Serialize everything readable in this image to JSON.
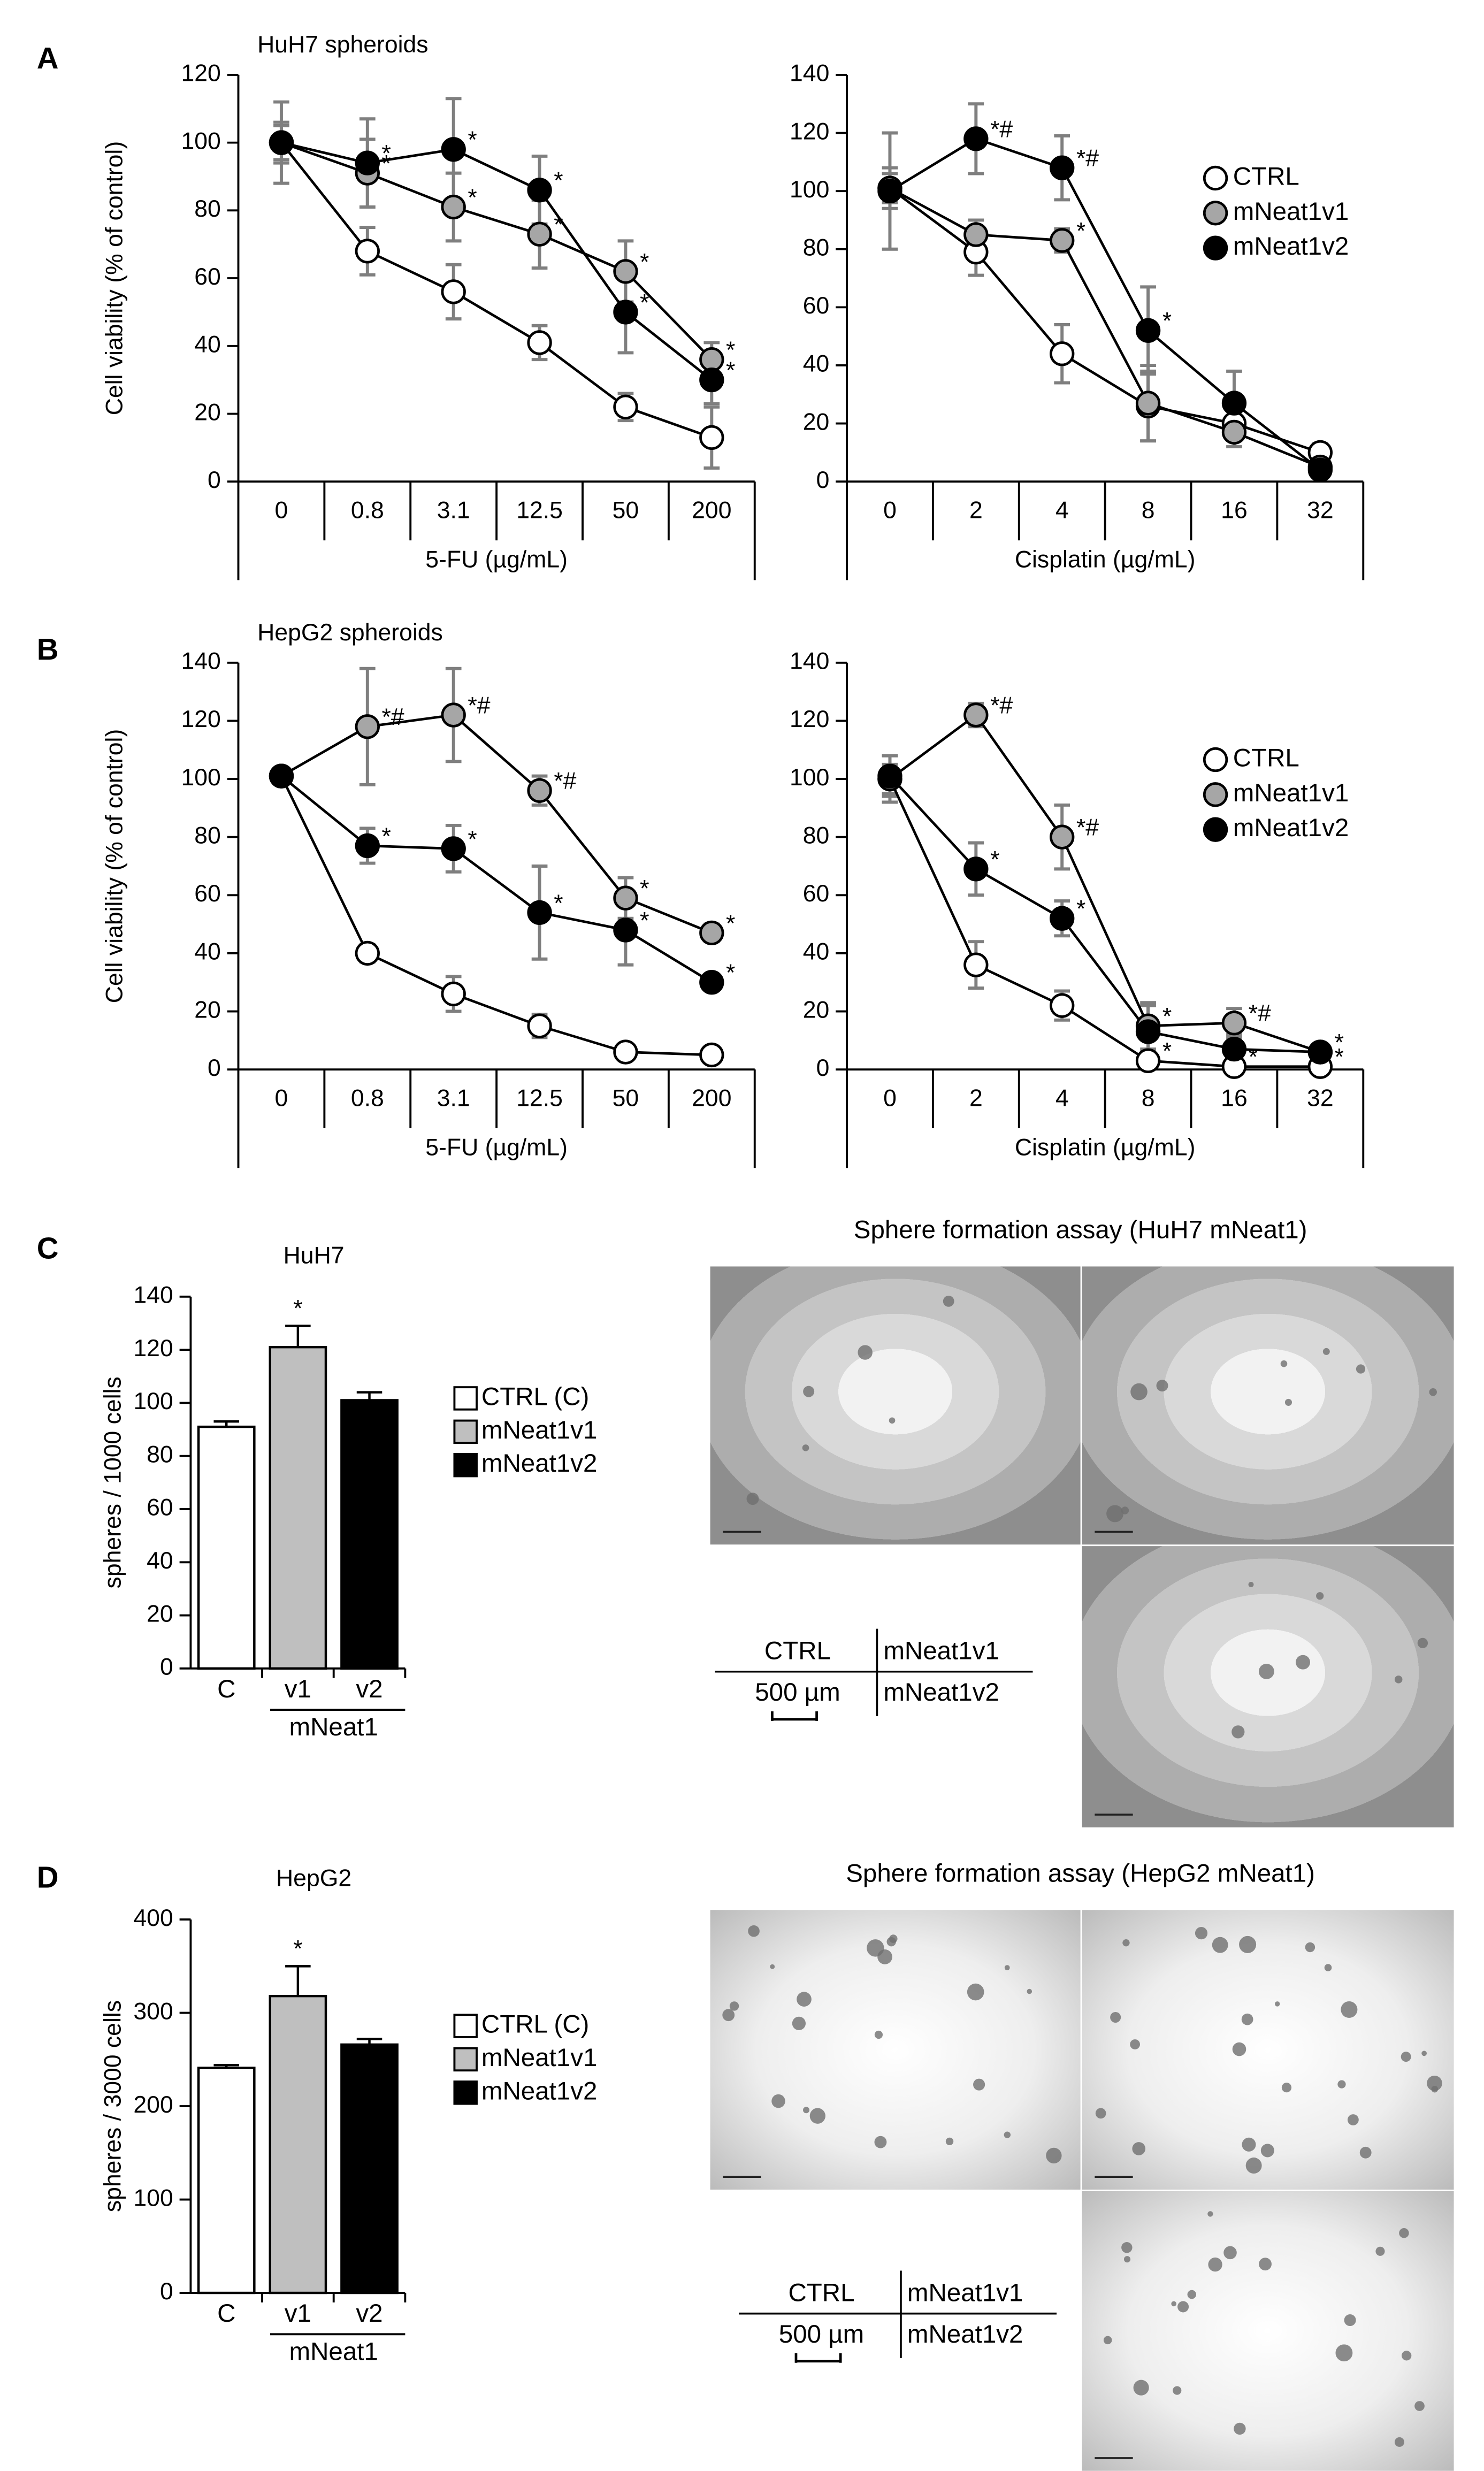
{
  "panels": [
    "A",
    "B",
    "C",
    "D"
  ],
  "chart_data": [
    {
      "type": "line",
      "title": "HuH7 spheroids",
      "ylabel": "Cell viability (% of control)",
      "xlabel": "5-FU (µg/mL)",
      "categories": [
        "0",
        "0.8",
        "3.1",
        "12.5",
        "50",
        "200"
      ],
      "ylim": [
        0,
        120
      ],
      "yticks": [
        0,
        20,
        40,
        60,
        80,
        100,
        120
      ],
      "series": [
        {
          "color": "#ffffff",
          "values": [
            100,
            68,
            56,
            41,
            22,
            13
          ],
          "errors": [
            5,
            7,
            8,
            5,
            4,
            9
          ],
          "significance": [
            null,
            null,
            null,
            null,
            null,
            null
          ]
        },
        {
          "color": "#a6a6a6",
          "values": [
            100,
            91,
            81,
            73,
            62,
            36
          ],
          "errors": [
            6,
            10,
            10,
            10,
            9,
            5
          ],
          "significance": [
            null,
            "*",
            "*",
            "*",
            "*",
            "*"
          ]
        },
        {
          "color": "#000000",
          "values": [
            100,
            94,
            98,
            86,
            50,
            30
          ],
          "errors": [
            12,
            13,
            15,
            10,
            12,
            7
          ],
          "significance": [
            null,
            "*",
            "*",
            "*",
            "*",
            "*"
          ]
        }
      ]
    },
    {
      "type": "line",
      "xlabel": "Cisplatin (µg/mL)",
      "legend": "right",
      "categories": [
        "0",
        "2",
        "4",
        "8",
        "16",
        "32"
      ],
      "ylim": [
        0,
        140
      ],
      "yticks": [
        0,
        20,
        40,
        60,
        80,
        100,
        120,
        140
      ],
      "series": [
        {
          "name": "CTRL",
          "color": "#ffffff",
          "values": [
            101,
            79,
            44,
            26,
            20,
            10
          ],
          "errors": [
            7,
            8,
            10,
            12,
            5,
            3
          ],
          "significance": [
            null,
            null,
            null,
            null,
            null,
            null
          ]
        },
        {
          "name": "mNeat1v1",
          "color": "#a6a6a6",
          "values": [
            101,
            85,
            83,
            27,
            17,
            5
          ],
          "errors": [
            5,
            5,
            4,
            13,
            5,
            2
          ],
          "significance": [
            null,
            null,
            "*",
            null,
            null,
            null
          ]
        },
        {
          "name": "mNeat1v2",
          "color": "#000000",
          "values": [
            100,
            118,
            108,
            52,
            27,
            4
          ],
          "errors": [
            20,
            12,
            11,
            15,
            11,
            2
          ],
          "significance": [
            null,
            "*#",
            "*#",
            "*",
            null,
            null
          ]
        }
      ]
    },
    {
      "type": "line",
      "title": "HepG2 spheroids",
      "ylabel": "Cell viability (% of control)",
      "xlabel": "5-FU (µg/mL)",
      "categories": [
        "0",
        "0.8",
        "3.1",
        "12.5",
        "50",
        "200"
      ],
      "ylim": [
        0,
        140
      ],
      "yticks": [
        0,
        20,
        40,
        60,
        80,
        100,
        120,
        140
      ],
      "series": [
        {
          "color": "#ffffff",
          "values": [
            101,
            40,
            26,
            15,
            6,
            5
          ],
          "errors": [
            2,
            3,
            6,
            4,
            2,
            2
          ],
          "significance": [
            null,
            null,
            null,
            null,
            null,
            null
          ]
        },
        {
          "color": "#a6a6a6",
          "values": [
            101,
            118,
            122,
            96,
            59,
            47
          ],
          "errors": [
            2,
            20,
            16,
            5,
            7,
            3
          ],
          "significance": [
            null,
            "*#",
            "*#",
            "*#",
            "*",
            "*"
          ]
        },
        {
          "color": "#000000",
          "values": [
            101,
            77,
            76,
            54,
            48,
            30
          ],
          "errors": [
            2,
            6,
            8,
            16,
            12,
            2
          ],
          "significance": [
            null,
            "*",
            "*",
            "*",
            "*",
            "*"
          ]
        }
      ]
    },
    {
      "type": "line",
      "xlabel": "Cisplatin (µg/mL)",
      "legend": "right",
      "categories": [
        "0",
        "2",
        "4",
        "8",
        "16",
        "32"
      ],
      "ylim": [
        0,
        140
      ],
      "yticks": [
        0,
        20,
        40,
        60,
        80,
        100,
        120,
        140
      ],
      "series": [
        {
          "name": "CTRL",
          "color": "#ffffff",
          "values": [
            100,
            36,
            22,
            3,
            1,
            1
          ],
          "errors": [
            8,
            8,
            5,
            2,
            1,
            1
          ],
          "significance": [
            null,
            null,
            null,
            "*",
            "*",
            "*"
          ]
        },
        {
          "name": "mNeat1v1",
          "color": "#a6a6a6",
          "values": [
            100,
            122,
            80,
            15,
            16,
            6
          ],
          "errors": [
            5,
            4,
            11,
            8,
            5,
            2
          ],
          "significance": [
            null,
            "*#",
            "*#",
            "*",
            "*#",
            null
          ]
        },
        {
          "name": "mNeat1v2",
          "color": "#000000",
          "values": [
            101,
            69,
            52,
            13,
            7,
            6
          ],
          "errors": [
            7,
            9,
            6,
            9,
            5,
            2
          ],
          "significance": [
            null,
            "*",
            "*",
            null,
            null,
            "*"
          ]
        }
      ]
    },
    {
      "type": "bar",
      "title": "HuH7",
      "ylabel": "spheres / 1000 cells",
      "group_label": "mNeat1",
      "categories": [
        "C",
        "v1",
        "v2"
      ],
      "values": [
        91,
        121,
        101
      ],
      "errors": [
        2,
        8,
        3
      ],
      "significance": [
        null,
        "*",
        null
      ],
      "colors": [
        "#ffffff",
        "#bfbfbf",
        "#000000"
      ],
      "legend": [
        "CTRL (C)",
        "mNeat1v1",
        "mNeat1v2"
      ],
      "ylim": [
        0,
        140
      ],
      "yticks": [
        0,
        20,
        40,
        60,
        80,
        100,
        120,
        140
      ]
    },
    {
      "type": "bar",
      "title": "HepG2",
      "ylabel": "spheres / 3000 cells",
      "group_label": "mNeat1",
      "categories": [
        "C",
        "v1",
        "v2"
      ],
      "values": [
        241,
        318,
        266
      ],
      "errors": [
        3,
        32,
        6
      ],
      "significance": [
        null,
        "*",
        null
      ],
      "colors": [
        "#ffffff",
        "#bfbfbf",
        "#000000"
      ],
      "legend": [
        "CTRL (C)",
        "mNeat1v1",
        "mNeat1v2"
      ],
      "ylim": [
        0,
        400
      ],
      "yticks": [
        0,
        100,
        200,
        300,
        400
      ]
    }
  ],
  "images": [
    {
      "title": "Sphere formation assay (HuH7 mNeat1)",
      "key": [
        "CTRL",
        "mNeat1v1",
        "mNeat1v2"
      ],
      "scale": "500 µm"
    },
    {
      "title": "Sphere formation assay (HepG2 mNeat1)",
      "key": [
        "CTRL",
        "mNeat1v1",
        "mNeat1v2"
      ],
      "scale": "500 µm"
    }
  ]
}
